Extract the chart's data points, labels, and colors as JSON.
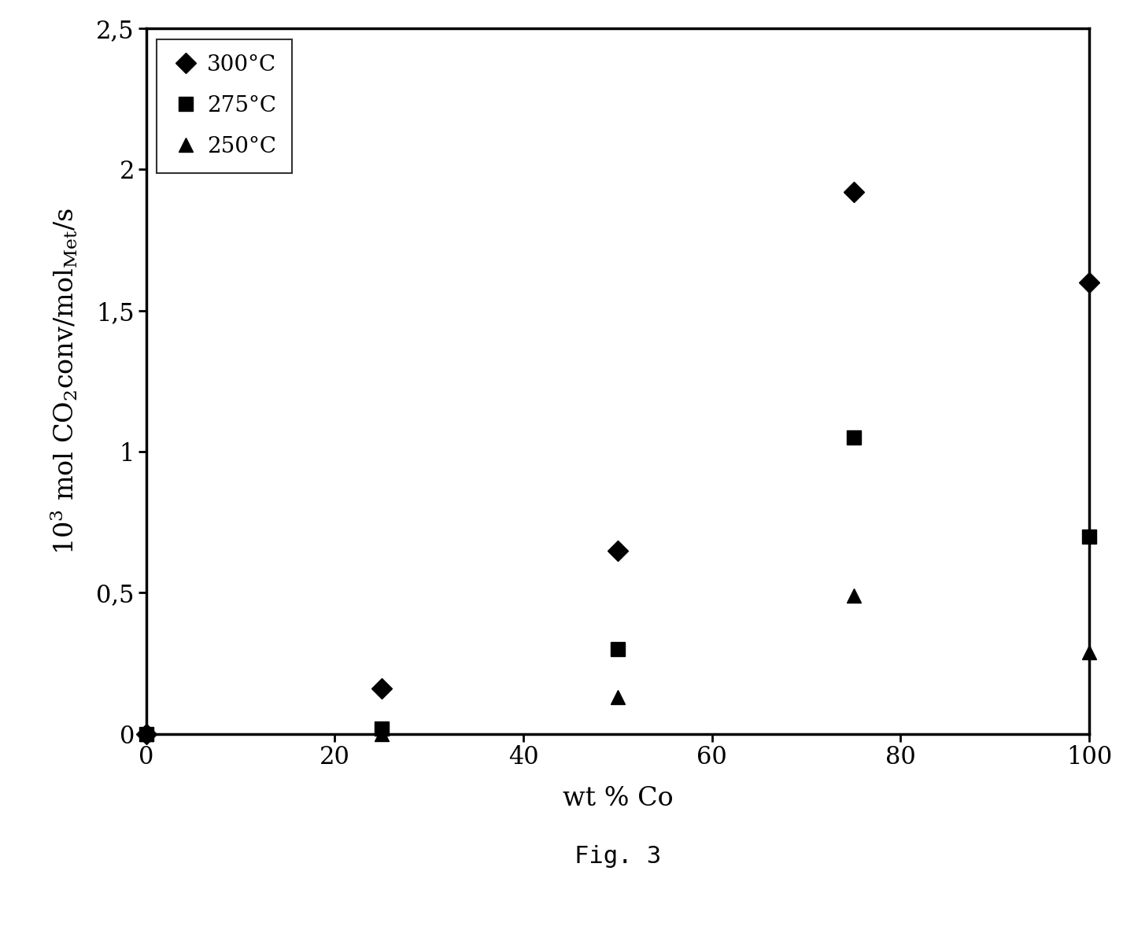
{
  "series": [
    {
      "label": "300°C",
      "marker": "D",
      "x": [
        0,
        25,
        50,
        75,
        100
      ],
      "y": [
        0.0,
        0.16,
        0.65,
        1.92,
        1.6
      ]
    },
    {
      "label": "275°C",
      "marker": "s",
      "x": [
        0,
        25,
        50,
        75,
        100
      ],
      "y": [
        0.0,
        0.02,
        0.3,
        1.05,
        0.7
      ]
    },
    {
      "label": "250°C",
      "marker": "^",
      "x": [
        0,
        25,
        50,
        75,
        100
      ],
      "y": [
        0.0,
        0.0,
        0.13,
        0.49,
        0.29
      ]
    }
  ],
  "xlabel": "wt % Co",
  "xlim": [
    0,
    100
  ],
  "ylim": [
    0,
    2.5
  ],
  "yticks": [
    0,
    0.5,
    1.0,
    1.5,
    2.0,
    2.5
  ],
  "ytick_labels": [
    "0",
    "0,5",
    "1",
    "1,5",
    "2",
    "2,5"
  ],
  "xticks": [
    0,
    20,
    40,
    60,
    80,
    100
  ],
  "xtick_labels": [
    "0",
    "20",
    "40",
    "60",
    "80",
    "100"
  ],
  "fig_caption": "Fig. 3",
  "marker_size": 13,
  "marker_color": "#000000",
  "background_color": "#ffffff",
  "spine_color": "#000000",
  "tick_fontsize": 22,
  "label_fontsize": 24,
  "legend_fontsize": 20,
  "caption_fontsize": 22
}
